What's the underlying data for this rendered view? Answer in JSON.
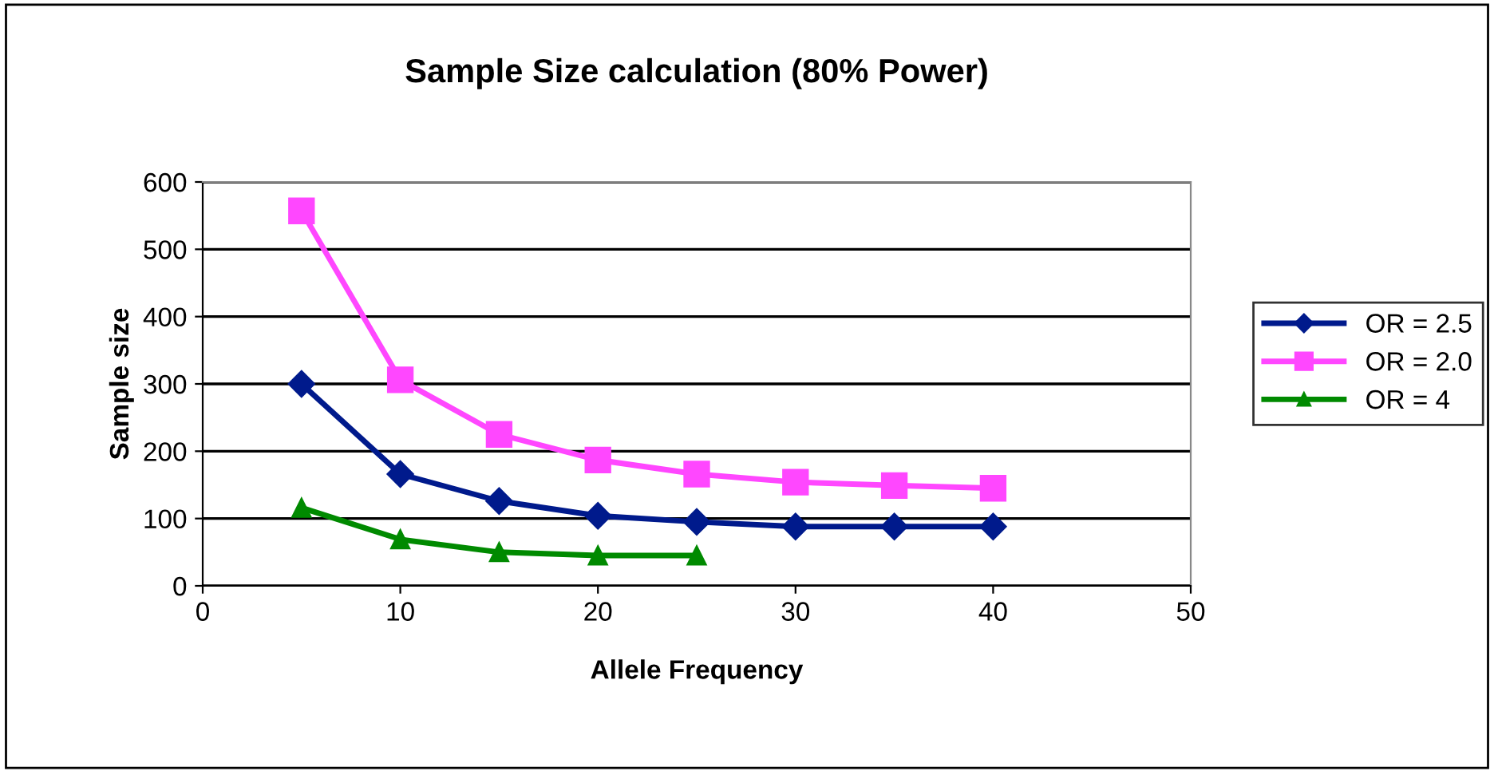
{
  "chart_data": {
    "type": "line",
    "title": "Sample Size calculation (80% Power)",
    "xlabel": "Allele Frequency",
    "ylabel": "Sample size",
    "x": [
      5,
      10,
      15,
      20,
      25,
      30,
      35,
      40
    ],
    "series": [
      {
        "name": "OR = 2.5",
        "color": "#001a8c",
        "marker": "diamond",
        "values": [
          300,
          166,
          126,
          104,
          95,
          88,
          88,
          88
        ]
      },
      {
        "name": "OR = 2.0",
        "color": "#ff47ff",
        "marker": "square",
        "values": [
          557,
          306,
          225,
          187,
          166,
          154,
          149,
          145
        ]
      },
      {
        "name": "OR = 4",
        "color": "#008a00",
        "marker": "triangle",
        "values": [
          116,
          69,
          50,
          45,
          45,
          null,
          null,
          null
        ]
      }
    ],
    "xlim": [
      0,
      50
    ],
    "xticks": [
      0,
      10,
      20,
      30,
      40,
      50
    ],
    "ylim": [
      0,
      600
    ],
    "yticks": [
      0,
      100,
      200,
      300,
      400,
      500,
      600
    ],
    "grid": "y",
    "legend": "right",
    "line_style": "solid"
  }
}
